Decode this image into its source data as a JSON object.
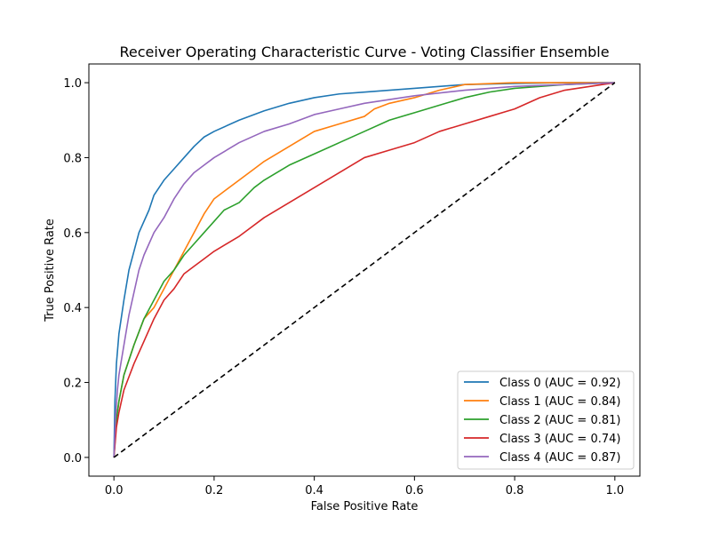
{
  "chart_data": {
    "type": "line",
    "title": "Receiver Operating Characteristic Curve - Voting Classifier Ensemble",
    "xlabel": "False Positive Rate",
    "ylabel": "True Positive Rate",
    "xlim": [
      -0.05,
      1.05
    ],
    "ylim": [
      -0.05,
      1.05
    ],
    "xticks": [
      "0.0",
      "0.2",
      "0.4",
      "0.6",
      "0.8",
      "1.0"
    ],
    "yticks": [
      "0.0",
      "0.2",
      "0.4",
      "0.6",
      "0.8",
      "1.0"
    ],
    "grid": false,
    "legend_position": "lower-right",
    "series": [
      {
        "name": "Class 0 (AUC = 0.92)",
        "color": "#1f77b4",
        "points": [
          [
            0,
            0
          ],
          [
            0.002,
            0.15
          ],
          [
            0.005,
            0.25
          ],
          [
            0.01,
            0.33
          ],
          [
            0.02,
            0.42
          ],
          [
            0.03,
            0.5
          ],
          [
            0.04,
            0.55
          ],
          [
            0.05,
            0.6
          ],
          [
            0.07,
            0.66
          ],
          [
            0.08,
            0.7
          ],
          [
            0.1,
            0.74
          ],
          [
            0.12,
            0.77
          ],
          [
            0.14,
            0.8
          ],
          [
            0.16,
            0.83
          ],
          [
            0.18,
            0.855
          ],
          [
            0.2,
            0.87
          ],
          [
            0.25,
            0.9
          ],
          [
            0.3,
            0.925
          ],
          [
            0.35,
            0.945
          ],
          [
            0.4,
            0.96
          ],
          [
            0.45,
            0.97
          ],
          [
            0.5,
            0.975
          ],
          [
            0.55,
            0.98
          ],
          [
            0.6,
            0.985
          ],
          [
            0.7,
            0.995
          ],
          [
            0.8,
            0.998
          ],
          [
            0.9,
            1.0
          ],
          [
            1.0,
            1.0
          ]
        ]
      },
      {
        "name": "Class 1 (AUC = 0.84)",
        "color": "#ff7f0e",
        "points": [
          [
            0,
            0
          ],
          [
            0.005,
            0.1
          ],
          [
            0.01,
            0.15
          ],
          [
            0.02,
            0.22
          ],
          [
            0.04,
            0.3
          ],
          [
            0.06,
            0.37
          ],
          [
            0.08,
            0.4
          ],
          [
            0.1,
            0.45
          ],
          [
            0.12,
            0.5
          ],
          [
            0.14,
            0.55
          ],
          [
            0.16,
            0.6
          ],
          [
            0.18,
            0.65
          ],
          [
            0.2,
            0.69
          ],
          [
            0.22,
            0.71
          ],
          [
            0.25,
            0.74
          ],
          [
            0.28,
            0.77
          ],
          [
            0.3,
            0.79
          ],
          [
            0.35,
            0.83
          ],
          [
            0.4,
            0.87
          ],
          [
            0.45,
            0.89
          ],
          [
            0.5,
            0.91
          ],
          [
            0.52,
            0.93
          ],
          [
            0.55,
            0.945
          ],
          [
            0.6,
            0.96
          ],
          [
            0.65,
            0.98
          ],
          [
            0.7,
            0.995
          ],
          [
            0.8,
            1.0
          ],
          [
            1.0,
            1.0
          ]
        ]
      },
      {
        "name": "Class 2 (AUC = 0.81)",
        "color": "#2ca02c",
        "points": [
          [
            0,
            0
          ],
          [
            0.005,
            0.1
          ],
          [
            0.01,
            0.15
          ],
          [
            0.02,
            0.22
          ],
          [
            0.04,
            0.3
          ],
          [
            0.06,
            0.37
          ],
          [
            0.08,
            0.42
          ],
          [
            0.1,
            0.47
          ],
          [
            0.12,
            0.5
          ],
          [
            0.14,
            0.54
          ],
          [
            0.16,
            0.57
          ],
          [
            0.18,
            0.6
          ],
          [
            0.2,
            0.63
          ],
          [
            0.22,
            0.66
          ],
          [
            0.25,
            0.68
          ],
          [
            0.28,
            0.72
          ],
          [
            0.3,
            0.74
          ],
          [
            0.35,
            0.78
          ],
          [
            0.4,
            0.81
          ],
          [
            0.45,
            0.84
          ],
          [
            0.5,
            0.87
          ],
          [
            0.55,
            0.9
          ],
          [
            0.6,
            0.92
          ],
          [
            0.65,
            0.94
          ],
          [
            0.7,
            0.96
          ],
          [
            0.75,
            0.975
          ],
          [
            0.8,
            0.985
          ],
          [
            0.9,
            0.995
          ],
          [
            1.0,
            1.0
          ]
        ]
      },
      {
        "name": "Class 3 (AUC = 0.74)",
        "color": "#d62728",
        "points": [
          [
            0,
            0
          ],
          [
            0.005,
            0.08
          ],
          [
            0.01,
            0.12
          ],
          [
            0.02,
            0.18
          ],
          [
            0.04,
            0.25
          ],
          [
            0.06,
            0.31
          ],
          [
            0.08,
            0.37
          ],
          [
            0.1,
            0.42
          ],
          [
            0.12,
            0.45
          ],
          [
            0.14,
            0.49
          ],
          [
            0.16,
            0.51
          ],
          [
            0.18,
            0.53
          ],
          [
            0.2,
            0.55
          ],
          [
            0.25,
            0.59
          ],
          [
            0.3,
            0.64
          ],
          [
            0.35,
            0.68
          ],
          [
            0.4,
            0.72
          ],
          [
            0.45,
            0.76
          ],
          [
            0.5,
            0.8
          ],
          [
            0.55,
            0.82
          ],
          [
            0.6,
            0.84
          ],
          [
            0.65,
            0.87
          ],
          [
            0.7,
            0.89
          ],
          [
            0.75,
            0.91
          ],
          [
            0.8,
            0.93
          ],
          [
            0.85,
            0.96
          ],
          [
            0.9,
            0.98
          ],
          [
            0.95,
            0.99
          ],
          [
            1.0,
            1.0
          ]
        ]
      },
      {
        "name": "Class 4 (AUC = 0.87)",
        "color": "#9467bd",
        "points": [
          [
            0,
            0
          ],
          [
            0.003,
            0.1
          ],
          [
            0.007,
            0.18
          ],
          [
            0.01,
            0.22
          ],
          [
            0.02,
            0.3
          ],
          [
            0.03,
            0.38
          ],
          [
            0.04,
            0.44
          ],
          [
            0.05,
            0.5
          ],
          [
            0.06,
            0.54
          ],
          [
            0.08,
            0.6
          ],
          [
            0.1,
            0.64
          ],
          [
            0.12,
            0.69
          ],
          [
            0.14,
            0.73
          ],
          [
            0.16,
            0.76
          ],
          [
            0.18,
            0.78
          ],
          [
            0.2,
            0.8
          ],
          [
            0.25,
            0.84
          ],
          [
            0.3,
            0.87
          ],
          [
            0.35,
            0.89
          ],
          [
            0.4,
            0.915
          ],
          [
            0.45,
            0.93
          ],
          [
            0.5,
            0.945
          ],
          [
            0.55,
            0.955
          ],
          [
            0.6,
            0.965
          ],
          [
            0.7,
            0.98
          ],
          [
            0.8,
            0.99
          ],
          [
            0.9,
            0.995
          ],
          [
            1.0,
            1.0
          ]
        ]
      }
    ],
    "reference_line": {
      "style": "dashed",
      "color": "#000000",
      "points": [
        [
          0,
          0
        ],
        [
          1,
          1
        ]
      ]
    }
  }
}
